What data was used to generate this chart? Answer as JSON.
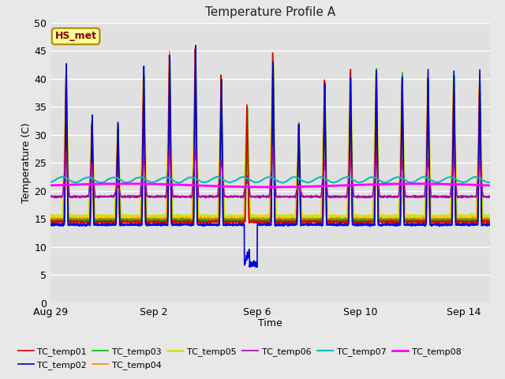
{
  "title": "Temperature Profile A",
  "xlabel": "Time",
  "ylabel": "Temperature (C)",
  "ylim": [
    0,
    50
  ],
  "n_days": 17,
  "background_color": "#e8e8e8",
  "plot_bg_color": "#e0e0e0",
  "series": {
    "TC_temp01": {
      "color": "#dd0000",
      "lw": 1.2
    },
    "TC_temp02": {
      "color": "#0000dd",
      "lw": 1.2
    },
    "TC_temp03": {
      "color": "#00bb00",
      "lw": 1.2
    },
    "TC_temp04": {
      "color": "#ff8800",
      "lw": 1.2
    },
    "TC_temp05": {
      "color": "#dddd00",
      "lw": 1.8
    },
    "TC_temp06": {
      "color": "#aa00aa",
      "lw": 1.2
    },
    "TC_temp07": {
      "color": "#00bbbb",
      "lw": 1.5
    },
    "TC_temp08": {
      "color": "#ff00ff",
      "lw": 2.0
    }
  },
  "xtick_labels": [
    "Aug 29",
    "Sep 2",
    "Sep 6",
    "Sep 10",
    "Sep 14"
  ],
  "xtick_positions": [
    0,
    4,
    8,
    12,
    16
  ],
  "ytick_positions": [
    0,
    5,
    10,
    15,
    20,
    25,
    30,
    35,
    40,
    45,
    50
  ],
  "annotation": {
    "text": "HS_met",
    "facecolor": "#ffff99",
    "edgecolor": "#aa8800",
    "textcolor": "#880000",
    "fontsize": 9,
    "fontweight": "bold"
  },
  "legend_labels": [
    "TC_temp01",
    "TC_temp02",
    "TC_temp03",
    "TC_temp04",
    "TC_temp05",
    "TC_temp06",
    "TC_temp07",
    "TC_temp08"
  ]
}
